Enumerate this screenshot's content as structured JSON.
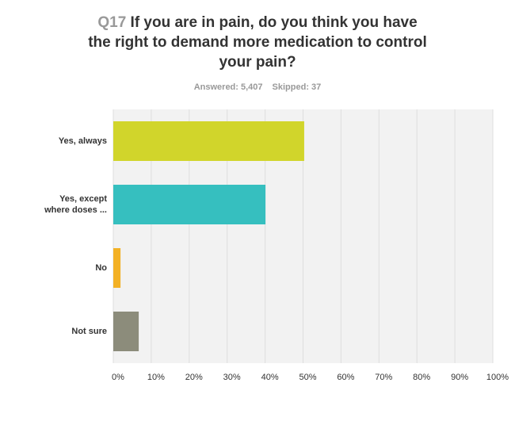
{
  "chart_data": {
    "type": "hbar",
    "question_number": "Q17",
    "title": "If you are in pain, do you think you have the right to demand more medication to control your pain?",
    "answered": "Answered: 5,407",
    "skipped": "Skipped: 37",
    "categories": [
      "Yes, always",
      "Yes, except where doses ...",
      "No",
      "Not sure"
    ],
    "values": [
      50.3,
      40.1,
      1.9,
      6.7
    ],
    "colors": [
      "#d1d52b",
      "#36bfbf",
      "#f3b125",
      "#8c8c7b"
    ],
    "xlim": [
      0,
      100
    ],
    "xticks": [
      {
        "value": 0,
        "label": "0%"
      },
      {
        "value": 10,
        "label": "10%"
      },
      {
        "value": 20,
        "label": "20%"
      },
      {
        "value": 30,
        "label": "30%"
      },
      {
        "value": 40,
        "label": "40%"
      },
      {
        "value": 50,
        "label": "50%"
      },
      {
        "value": 60,
        "label": "60%"
      },
      {
        "value": 70,
        "label": "70%"
      },
      {
        "value": 80,
        "label": "80%"
      },
      {
        "value": 90,
        "label": "90%"
      },
      {
        "value": 100,
        "label": "100%"
      }
    ],
    "grid": true
  }
}
